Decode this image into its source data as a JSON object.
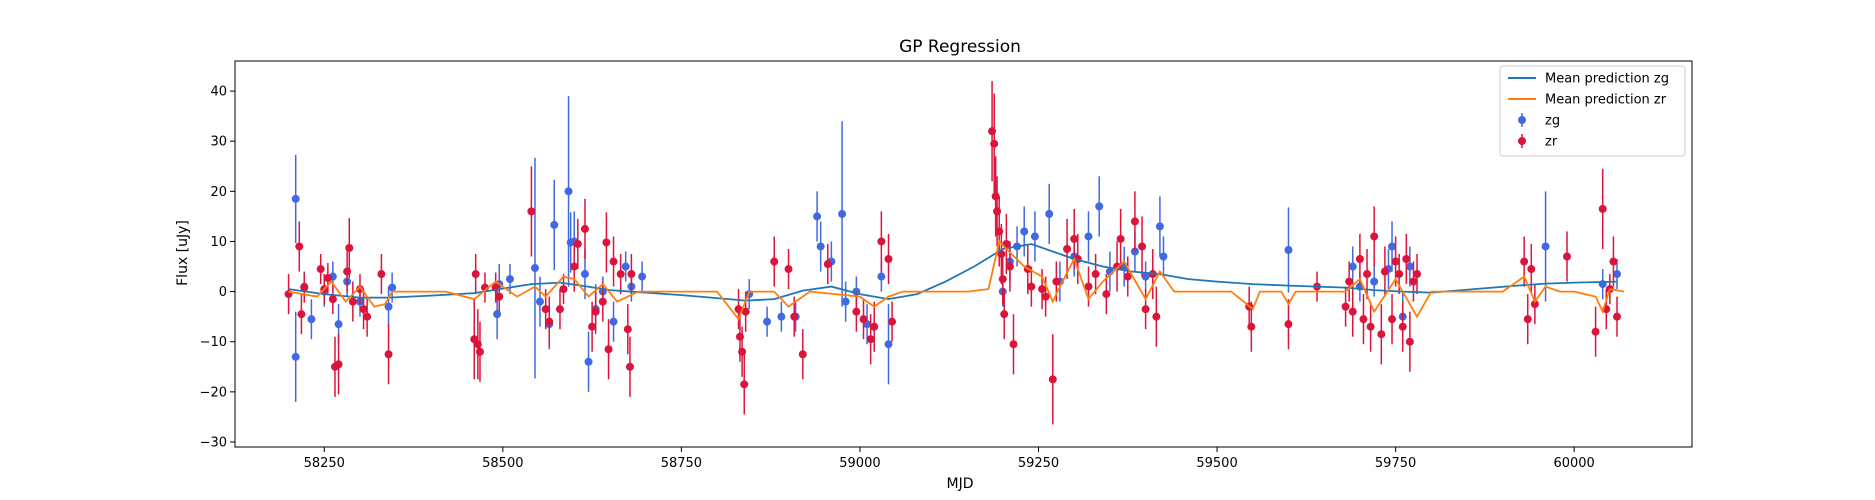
{
  "chart_data": {
    "type": "scatter",
    "title": "GP Regression",
    "xlabel": "MJD",
    "ylabel": "Flux [uJy]",
    "xlim": [
      58125,
      60165
    ],
    "ylim": [
      -31,
      46
    ],
    "xticks": [
      58250,
      58500,
      58750,
      59000,
      59250,
      59500,
      59750,
      60000
    ],
    "yticks": [
      -30,
      -20,
      -10,
      0,
      10,
      20,
      30,
      40
    ],
    "grid": false,
    "legend": {
      "position": "top-right",
      "entries": [
        "Mean prediction zg",
        "Mean prediction zr",
        "zg",
        "zr"
      ]
    },
    "colors": {
      "zg_points": "#4169e1",
      "zr_points": "#dc143c",
      "zg_line": "#1f77b4",
      "zr_line": "#ff7f0e"
    },
    "series": [
      {
        "name": "Mean prediction zg",
        "kind": "line",
        "x": [
          58200,
          58250,
          58300,
          58340,
          58400,
          58460,
          58500,
          58540,
          58580,
          58610,
          58650,
          58700,
          58750,
          58800,
          58840,
          58880,
          58920,
          58960,
          59000,
          59040,
          59080,
          59120,
          59160,
          59200,
          59240,
          59270,
          59300,
          59340,
          59380,
          59420,
          59460,
          59500,
          59550,
          59600,
          59640,
          59680,
          59720,
          59760,
          59800,
          59860,
          59920,
          59960,
          60000,
          60060
        ],
        "y": [
          0.5,
          -0.5,
          -1.2,
          -1.2,
          -0.8,
          -0.3,
          0.6,
          1.5,
          1.8,
          1.2,
          0.3,
          -0.2,
          -0.7,
          -1.3,
          -1.8,
          -1.5,
          0.2,
          1.0,
          -0.5,
          -1.5,
          -0.5,
          2.0,
          5.0,
          8.5,
          9.5,
          8.0,
          6.5,
          5.0,
          4.0,
          3.5,
          2.5,
          2.0,
          1.5,
          1.2,
          1.0,
          0.8,
          0.3,
          0.0,
          -0.2,
          0.5,
          1.2,
          1.6,
          1.8,
          2.0
        ]
      },
      {
        "name": "Mean prediction zr",
        "kind": "line",
        "x": [
          58200,
          58240,
          58260,
          58280,
          58300,
          58320,
          58335,
          58345,
          58420,
          58460,
          58490,
          58520,
          58545,
          58560,
          58585,
          58600,
          58620,
          58640,
          58660,
          58690,
          58800,
          58830,
          58845,
          58880,
          58900,
          58930,
          59000,
          59020,
          59040,
          59060,
          59150,
          59180,
          59195,
          59205,
          59230,
          59255,
          59270,
          59280,
          59300,
          59320,
          59340,
          59370,
          59400,
          59420,
          59440,
          59520,
          59550,
          59560,
          59590,
          59600,
          59610,
          59680,
          59700,
          59720,
          59750,
          59780,
          59800,
          59900,
          59930,
          59945,
          59960,
          59980,
          60000,
          60030,
          60040,
          60050,
          60070
        ],
        "y": [
          0,
          -1.0,
          2.0,
          -2.0,
          1.0,
          -3.0,
          -2.5,
          0,
          0,
          -1.5,
          2.0,
          -1.0,
          1.0,
          -1.0,
          3.0,
          2.5,
          -1.0,
          1.5,
          -2.0,
          0,
          0,
          -5.5,
          0,
          0,
          -3.0,
          0,
          -1.0,
          -3.0,
          -1.0,
          0,
          0,
          0.5,
          10.0,
          8.5,
          5.0,
          3.0,
          -2.0,
          1.0,
          6.5,
          -1.5,
          2.0,
          6.0,
          -1.5,
          4.0,
          0,
          0,
          -3.5,
          0,
          0,
          -2.5,
          0,
          0,
          2.5,
          -4.0,
          2.5,
          -5.0,
          0,
          0,
          3.0,
          -2.0,
          1.0,
          0,
          0,
          -1.0,
          -4.0,
          0.5,
          0
        ]
      },
      {
        "name": "zg",
        "kind": "errorbar",
        "points": [
          [
            58210,
            18.5,
            8.8
          ],
          [
            58210,
            -13,
            9
          ],
          [
            58222,
            1,
            3
          ],
          [
            58232,
            -5.5,
            4
          ],
          [
            58250,
            0,
            3
          ],
          [
            58262,
            3,
            3
          ],
          [
            58270,
            -6.5,
            4
          ],
          [
            58282,
            2,
            3
          ],
          [
            58300,
            -2,
            3
          ],
          [
            58340,
            -3,
            4
          ],
          [
            58345,
            0.8,
            3
          ],
          [
            58492,
            -4.5,
            5
          ],
          [
            58495,
            1.5,
            4
          ],
          [
            58510,
            2.5,
            3
          ],
          [
            58545,
            4.7,
            22
          ],
          [
            58552,
            -2,
            5
          ],
          [
            58565,
            -6.5,
            5
          ],
          [
            58572,
            13.3,
            9
          ],
          [
            58592,
            20,
            19
          ],
          [
            58595,
            9.8,
            6
          ],
          [
            58600,
            10,
            6
          ],
          [
            58615,
            3.5,
            5
          ],
          [
            58620,
            -14,
            6
          ],
          [
            58630,
            -3.5,
            5
          ],
          [
            58640,
            0,
            3
          ],
          [
            58655,
            -6,
            4
          ],
          [
            58672,
            5,
            3
          ],
          [
            58680,
            1,
            3
          ],
          [
            58695,
            3,
            3
          ],
          [
            58845,
            -0.5,
            3
          ],
          [
            58870,
            -6,
            3
          ],
          [
            58890,
            -5,
            3
          ],
          [
            58910,
            -5,
            3
          ],
          [
            58940,
            15,
            5
          ],
          [
            58945,
            9,
            5
          ],
          [
            58960,
            6,
            4
          ],
          [
            58975,
            15.5,
            18.5
          ],
          [
            58980,
            -2,
            4
          ],
          [
            58995,
            0,
            3
          ],
          [
            59010,
            -6.5,
            4
          ],
          [
            59030,
            3,
            3
          ],
          [
            59040,
            -10.5,
            8
          ],
          [
            59200,
            0,
            3
          ],
          [
            59210,
            6,
            4
          ],
          [
            59220,
            9,
            4
          ],
          [
            59230,
            12,
            5
          ],
          [
            59245,
            11,
            5
          ],
          [
            59265,
            15.5,
            6
          ],
          [
            59280,
            2,
            4
          ],
          [
            59300,
            7,
            4
          ],
          [
            59320,
            11,
            5
          ],
          [
            59335,
            17,
            6
          ],
          [
            59350,
            4,
            4
          ],
          [
            59370,
            5,
            4
          ],
          [
            59385,
            8,
            4
          ],
          [
            59400,
            3,
            3
          ],
          [
            59420,
            13,
            6
          ],
          [
            59425,
            7,
            4
          ],
          [
            59600,
            8.3,
            8.5
          ],
          [
            59690,
            5,
            4
          ],
          [
            59700,
            1,
            3
          ],
          [
            59720,
            2,
            3
          ],
          [
            59740,
            4.5,
            4
          ],
          [
            59745,
            9,
            5
          ],
          [
            59760,
            -5,
            5
          ],
          [
            59770,
            5,
            4
          ],
          [
            59960,
            9,
            11
          ],
          [
            60040,
            1.5,
            3
          ],
          [
            60060,
            3.5,
            3
          ]
        ]
      },
      {
        "name": "zr",
        "kind": "errorbar",
        "points": [
          [
            58200,
            -0.5,
            4
          ],
          [
            58215,
            9,
            5
          ],
          [
            58218,
            -4.5,
            4
          ],
          [
            58222,
            0.8,
            3
          ],
          [
            58245,
            4.5,
            3
          ],
          [
            58250,
            0.5,
            3
          ],
          [
            58255,
            2.7,
            3
          ],
          [
            58262,
            -1.5,
            3
          ],
          [
            58265,
            -15,
            6
          ],
          [
            58270,
            -14.5,
            6
          ],
          [
            58282,
            4,
            4
          ],
          [
            58285,
            8.7,
            6
          ],
          [
            58290,
            -2,
            4
          ],
          [
            58300,
            0.5,
            3
          ],
          [
            58305,
            -3.5,
            4
          ],
          [
            58310,
            -5,
            4
          ],
          [
            58330,
            3.5,
            4
          ],
          [
            58340,
            -12.5,
            6
          ],
          [
            58460,
            -9.5,
            8
          ],
          [
            58462,
            3.5,
            4
          ],
          [
            58465,
            -10.5,
            7
          ],
          [
            58468,
            -12,
            6
          ],
          [
            58475,
            0.8,
            3
          ],
          [
            58490,
            0.8,
            3
          ],
          [
            58495,
            -1,
            3
          ],
          [
            58540,
            16,
            9
          ],
          [
            58560,
            -3.5,
            4
          ],
          [
            58565,
            -6,
            5
          ],
          [
            58580,
            -3.5,
            4
          ],
          [
            58585,
            0.5,
            3
          ],
          [
            58600,
            5,
            5
          ],
          [
            58605,
            9.5,
            5
          ],
          [
            58615,
            12.5,
            6
          ],
          [
            58625,
            -7,
            5
          ],
          [
            58630,
            -4,
            4
          ],
          [
            58640,
            -2,
            4
          ],
          [
            58645,
            9.8,
            6
          ],
          [
            58648,
            -11.5,
            6
          ],
          [
            58655,
            6,
            5
          ],
          [
            58665,
            3.5,
            4
          ],
          [
            58675,
            -7.5,
            5
          ],
          [
            58678,
            -15,
            6
          ],
          [
            58680,
            3.5,
            4
          ],
          [
            58830,
            -3.5,
            4
          ],
          [
            58832,
            -9,
            5
          ],
          [
            58835,
            -12,
            5
          ],
          [
            58838,
            -18.5,
            6
          ],
          [
            58840,
            -4,
            4
          ],
          [
            58880,
            6,
            5
          ],
          [
            58900,
            4.5,
            4
          ],
          [
            58908,
            -5,
            4
          ],
          [
            58920,
            -12.5,
            5
          ],
          [
            58955,
            5.5,
            4
          ],
          [
            58995,
            -4,
            4
          ],
          [
            59005,
            -5.5,
            4
          ],
          [
            59015,
            -9.5,
            5
          ],
          [
            59020,
            -7,
            5
          ],
          [
            59030,
            10,
            6
          ],
          [
            59040,
            6.5,
            5
          ],
          [
            59045,
            -6,
            4
          ],
          [
            59185,
            32,
            10
          ],
          [
            59188,
            29.5,
            10
          ],
          [
            59190,
            19,
            8
          ],
          [
            59192,
            16,
            7
          ],
          [
            59195,
            12,
            7
          ],
          [
            59198,
            7.5,
            6
          ],
          [
            59200,
            2.5,
            5
          ],
          [
            59202,
            -4.5,
            5
          ],
          [
            59205,
            9.5,
            6
          ],
          [
            59210,
            5,
            5
          ],
          [
            59215,
            -10.5,
            6
          ],
          [
            59235,
            4.5,
            5
          ],
          [
            59240,
            1,
            4
          ],
          [
            59255,
            0.5,
            4
          ],
          [
            59260,
            -1,
            4
          ],
          [
            59270,
            -17.5,
            9
          ],
          [
            59275,
            2,
            4
          ],
          [
            59290,
            8.5,
            6
          ],
          [
            59300,
            10.5,
            6
          ],
          [
            59305,
            6.5,
            5
          ],
          [
            59320,
            1,
            4
          ],
          [
            59330,
            3.5,
            4
          ],
          [
            59345,
            -0.5,
            4
          ],
          [
            59360,
            5,
            5
          ],
          [
            59365,
            10.5,
            6
          ],
          [
            59375,
            3,
            4
          ],
          [
            59385,
            14,
            6
          ],
          [
            59395,
            9,
            6
          ],
          [
            59400,
            -3.5,
            4
          ],
          [
            59410,
            3.5,
            5
          ],
          [
            59415,
            -5,
            6
          ],
          [
            59545,
            -3,
            4
          ],
          [
            59548,
            -7,
            5
          ],
          [
            59600,
            -6.5,
            5
          ],
          [
            59640,
            1,
            3
          ],
          [
            59680,
            -3,
            4
          ],
          [
            59685,
            2,
            4
          ],
          [
            59690,
            -4,
            5
          ],
          [
            59700,
            6.5,
            5
          ],
          [
            59705,
            -5.5,
            5
          ],
          [
            59710,
            3.5,
            5
          ],
          [
            59715,
            -7,
            5
          ],
          [
            59720,
            11,
            6
          ],
          [
            59730,
            -8.5,
            6
          ],
          [
            59735,
            4,
            5
          ],
          [
            59745,
            -5.5,
            5
          ],
          [
            59750,
            6,
            5
          ],
          [
            59755,
            3.5,
            4
          ],
          [
            59760,
            -7,
            5
          ],
          [
            59765,
            6.5,
            5
          ],
          [
            59770,
            -10,
            6
          ],
          [
            59775,
            2,
            4
          ],
          [
            59780,
            3.5,
            4
          ],
          [
            59930,
            6,
            5
          ],
          [
            59935,
            -5.5,
            5
          ],
          [
            59940,
            4.5,
            5
          ],
          [
            59945,
            -2.5,
            4
          ],
          [
            59990,
            7,
            5
          ],
          [
            60030,
            -8,
            5
          ],
          [
            60040,
            16.5,
            8
          ],
          [
            60045,
            -3.5,
            4
          ],
          [
            60050,
            0.5,
            3
          ],
          [
            60055,
            6,
            5
          ],
          [
            60060,
            -5,
            4
          ]
        ]
      }
    ]
  }
}
